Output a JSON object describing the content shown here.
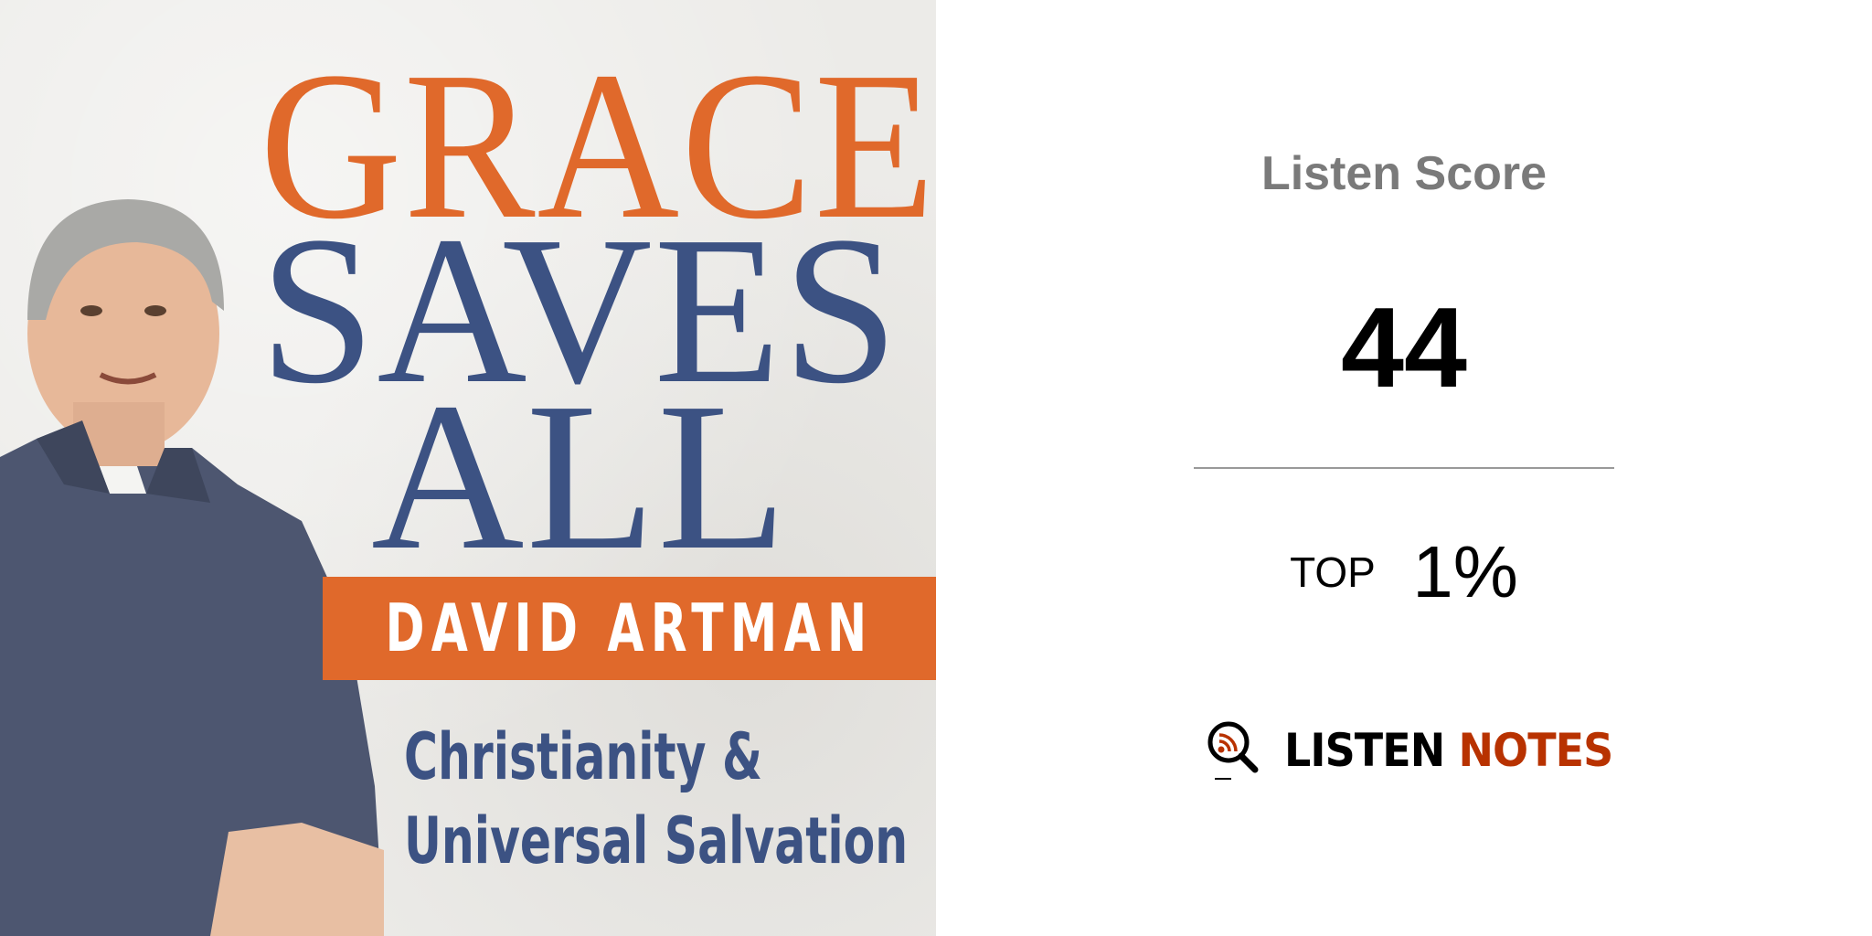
{
  "cover": {
    "title_line1": "GRACE",
    "title_line2": "SAVES",
    "title_line3": "ALL",
    "author": "DAVID ARTMAN",
    "subtitle_line1": "Christianity &",
    "subtitle_line2": "Universal Salvation",
    "colors": {
      "orange": "#e0692b",
      "blue": "#3c5283",
      "background": "#ecebe8"
    }
  },
  "score_panel": {
    "label": "Listen Score",
    "value": "44",
    "rank_label": "TOP",
    "rank_value": "1%"
  },
  "logo": {
    "icon": "magnifier-rss-icon",
    "word1": "LISTEN",
    "word2": "NOTES",
    "colors": {
      "word1": "#000000",
      "word2": "#b83200"
    }
  }
}
